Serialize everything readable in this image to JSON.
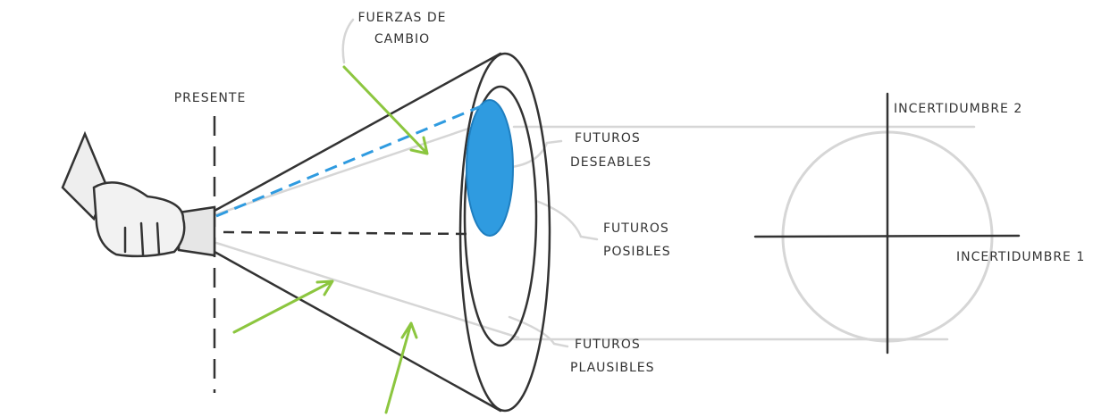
{
  "labels": {
    "forces": [
      "FUERZAS DE",
      "CAMBIO"
    ],
    "present": "PRESENTE",
    "desirable": [
      "FUTUROS",
      "DESEABLES"
    ],
    "possible": [
      "FUTUROS",
      "POSIBLES"
    ],
    "plausible": [
      "FUTUROS",
      "PLAUSIBLES"
    ],
    "uncertainty_2": "INCERTIDUMBRE 2",
    "uncertainty_1": "INCERTIDUMBRE 1"
  }
}
